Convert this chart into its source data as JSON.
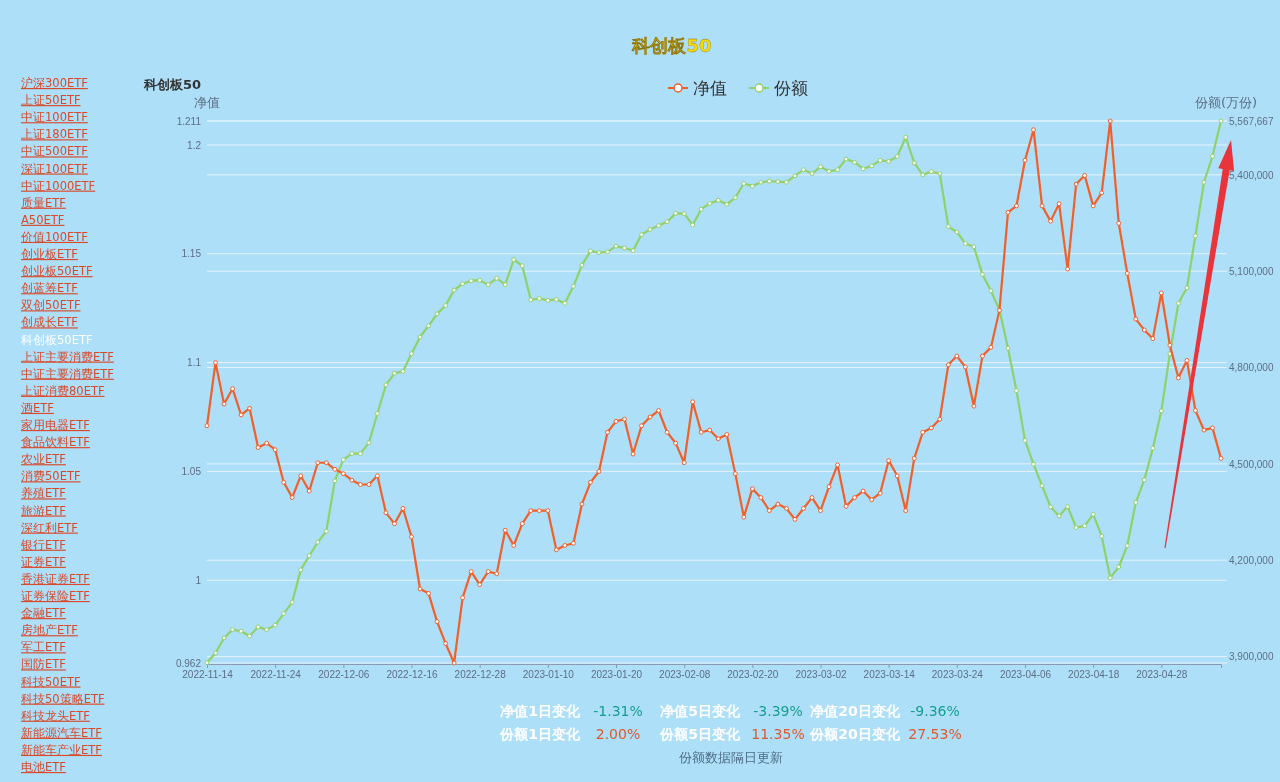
{
  "chart_data": {
    "type": "line",
    "title": "科创板50",
    "subtitle": "科创板50",
    "ylabel": "净值",
    "y2label": "份额(万份)",
    "categories": [
      "2022-11-14",
      null,
      null,
      null,
      null,
      null,
      null,
      null,
      "2022-11-24",
      null,
      null,
      null,
      null,
      null,
      null,
      null,
      "2022-12-06",
      null,
      null,
      null,
      null,
      null,
      null,
      null,
      "2022-12-16",
      null,
      null,
      null,
      null,
      null,
      null,
      null,
      "2022-12-28",
      null,
      null,
      null,
      null,
      null,
      null,
      null,
      "2023-01-10",
      null,
      null,
      null,
      null,
      null,
      null,
      null,
      "2023-01-20",
      null,
      null,
      null,
      null,
      null,
      null,
      null,
      "2023-02-08",
      null,
      null,
      null,
      null,
      null,
      null,
      null,
      "2023-02-20",
      null,
      null,
      null,
      null,
      null,
      null,
      null,
      "2023-03-02",
      null,
      null,
      null,
      null,
      null,
      null,
      null,
      "2023-03-14",
      null,
      null,
      null,
      null,
      null,
      null,
      null,
      "2023-03-24",
      null,
      null,
      null,
      null,
      null,
      null,
      null,
      "2023-04-06",
      null,
      null,
      null,
      null,
      null,
      null,
      null,
      "2023-04-18",
      null,
      null,
      null,
      null,
      null,
      null,
      null,
      "2023-04-28",
      null,
      null,
      null,
      null,
      null,
      null,
      null
    ],
    "series": [
      {
        "name": "净值",
        "color": "#f0602a",
        "values": [
          1.071,
          1.1,
          1.081,
          1.088,
          1.076,
          1.079,
          1.061,
          1.063,
          1.06,
          1.045,
          1.038,
          1.048,
          1.041,
          1.054,
          1.054,
          1.051,
          1.049,
          1.046,
          1.044,
          1.044,
          1.048,
          1.031,
          1.026,
          1.033,
          1.02,
          0.996,
          0.994,
          0.981,
          0.971,
          0.962,
          0.992,
          1.004,
          0.998,
          1.004,
          1.003,
          1.023,
          1.016,
          1.026,
          1.032,
          1.032,
          1.032,
          1.014,
          1.016,
          1.017,
          1.035,
          1.045,
          1.05,
          1.068,
          1.073,
          1.074,
          1.058,
          1.071,
          1.075,
          1.078,
          1.068,
          1.063,
          1.054,
          1.082,
          1.068,
          1.069,
          1.065,
          1.067,
          1.049,
          1.029,
          1.042,
          1.038,
          1.032,
          1.035,
          1.033,
          1.028,
          1.033,
          1.038,
          1.032,
          1.043,
          1.053,
          1.034,
          1.038,
          1.041,
          1.037,
          1.04,
          1.055,
          1.048,
          1.032,
          1.056,
          1.068,
          1.07,
          1.074,
          1.099,
          1.103,
          1.098,
          1.08,
          1.103,
          1.107,
          1.124,
          1.169,
          1.172,
          1.193,
          1.207,
          1.172,
          1.165,
          1.173,
          1.143,
          1.182,
          1.186,
          1.172,
          1.178,
          1.211,
          1.164,
          1.141,
          1.12,
          1.115,
          1.111,
          1.132,
          1.108,
          1.093,
          1.101,
          1.078,
          1.069,
          1.07,
          1.056
        ]
      },
      {
        "name": "份额",
        "color": "#8fd16a",
        "axis": "y2",
        "values": [
          3881000,
          3911000,
          3958000,
          3984000,
          3979000,
          3964000,
          3992000,
          3984000,
          3998000,
          4034000,
          4069000,
          4170000,
          4214000,
          4256000,
          4290000,
          4447000,
          4513000,
          4532000,
          4532000,
          4566000,
          4657000,
          4746000,
          4782000,
          4788000,
          4843000,
          4895000,
          4930000,
          4967000,
          4993000,
          5041000,
          5061000,
          5070000,
          5072000,
          5058000,
          5078000,
          5058000,
          5136000,
          5117000,
          5011000,
          5015000,
          5009000,
          5012000,
          5000000,
          5053000,
          5119000,
          5163000,
          5158000,
          5160000,
          5178000,
          5172000,
          5164000,
          5214000,
          5230000,
          5242000,
          5254000,
          5280000,
          5279000,
          5244000,
          5293000,
          5311000,
          5321000,
          5308000,
          5329000,
          5373000,
          5365000,
          5377000,
          5380000,
          5379000,
          5377000,
          5397000,
          5416000,
          5404000,
          5425000,
          5411000,
          5416000,
          5449000,
          5439000,
          5419000,
          5428000,
          5445000,
          5442000,
          5457000,
          5517000,
          5437000,
          5400000,
          5410000,
          5404000,
          5239000,
          5222000,
          5186000,
          5176000,
          5090000,
          5039000,
          4979000,
          4860000,
          4728000,
          4573000,
          4499000,
          4432000,
          4366000,
          4338000,
          4367000,
          4302000,
          4307000,
          4343000,
          4275000,
          4145000,
          4179000,
          4245000,
          4380000,
          4450000,
          4549000,
          4665000,
          4843000,
          5000000,
          5048000,
          5210000,
          5377000,
          5458000,
          5567667
        ]
      }
    ],
    "ylim": [
      0.962,
      1.211
    ],
    "yticks": [
      0.962,
      1,
      1.05,
      1.1,
      1.15,
      1.2,
      1.211
    ],
    "y2lim": [
      3880000,
      5567667
    ],
    "y2ticks": [
      {
        "value": 3900000,
        "label": "3,900,000"
      },
      {
        "value": 4200000,
        "label": "4,200,000"
      },
      {
        "value": 4500000,
        "label": "4,500,000"
      },
      {
        "value": 4800000,
        "label": "4,800,000"
      },
      {
        "value": 5100000,
        "label": "5,100,000"
      },
      {
        "value": 5400000,
        "label": "5,400,000"
      },
      {
        "value": 5567667,
        "label": "5,567,667"
      }
    ],
    "grid": "y",
    "legend": "top",
    "marker": "circle",
    "line_style": "solid",
    "annotations": [
      "沪深300ETF",
      "上证50ETF",
      "中证100ETF",
      "上证180ETF",
      "中证500ETF",
      "深证100ETF",
      "中证1000ETF",
      "质量ETF",
      "A50ETF",
      "价值100ETF",
      "创业板ETF",
      "创业板50ETF",
      "创蓝筹ETF",
      "双创50ETF",
      "创成长ETF",
      "科创板50ETF",
      "上证主要消费ETF",
      "中证主要消费ETF",
      "上证消费80ETF",
      "酒ETF",
      "家用电器ETF",
      "食品饮料ETF",
      "农业ETF",
      "消费50ETF",
      "养殖ETF",
      "旅游ETF",
      "深红利ETF",
      "银行ETF",
      "证券ETF",
      "香港证券ETF",
      "证券保险ETF",
      "金融ETF",
      "房地产ETF",
      "军工ETF",
      "国防ETF",
      "科技50ETF",
      "科技50策略ETF",
      "科技龙头ETF",
      "新能源汽车ETF",
      "新能车产业ETF",
      "电池ETF",
      "净值1日变化",
      "-1.31%",
      "净值5日变化",
      "-3.39%",
      "净值20日变化",
      "-9.36%",
      "份额1日变化",
      "2.00%",
      "份额5日变化",
      "11.35%",
      "份额20日变化",
      "27.53%",
      "份额数据隔日更新"
    ]
  }
}
